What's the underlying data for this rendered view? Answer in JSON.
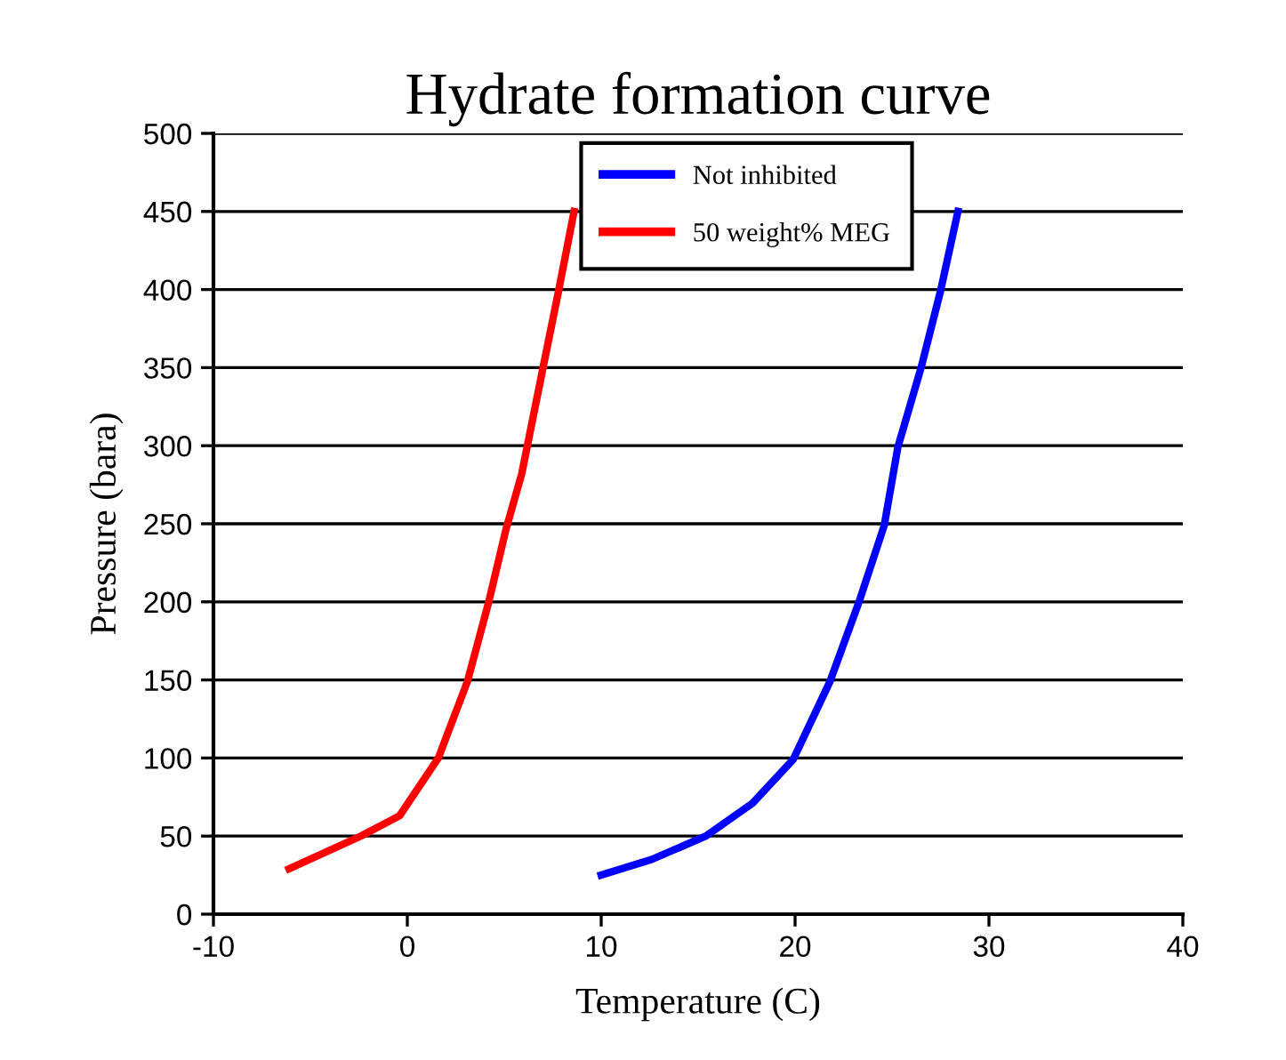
{
  "chart_data": {
    "type": "line",
    "title": "Hydrate formation curve",
    "xlabel": "Temperature (C)",
    "ylabel": "Pressure (bara)",
    "series": [
      {
        "name": "Not inhibited",
        "color": "#0000ff",
        "x": [
          10,
          12.6,
          15.4,
          17.8,
          19.9,
          21.8,
          23.3,
          24.6,
          25.3,
          26.5,
          27.5,
          28.4
        ],
        "values": [
          25,
          35,
          50,
          71,
          99,
          149,
          200,
          249,
          299,
          350,
          399,
          450
        ]
      },
      {
        "name": "50 weight% MEG",
        "color": "#ff0000",
        "x": [
          -6.1,
          -2.4,
          -0.4,
          1.6,
          3.1,
          4.2,
          5.1,
          5.9,
          7.0,
          7.8,
          8.6
        ],
        "values": [
          29,
          50,
          63,
          100,
          149,
          200,
          247,
          282,
          350,
          399,
          450
        ]
      }
    ],
    "xlim": [
      -10,
      40
    ],
    "xticks": [
      -10,
      0,
      10,
      20,
      30,
      40
    ],
    "ylim": [
      0,
      500
    ],
    "yticks": [
      0,
      50,
      100,
      150,
      200,
      250,
      300,
      350,
      400,
      450,
      500
    ],
    "grid": "y",
    "legend": "top",
    "marker": "none",
    "line_style": "solid"
  }
}
